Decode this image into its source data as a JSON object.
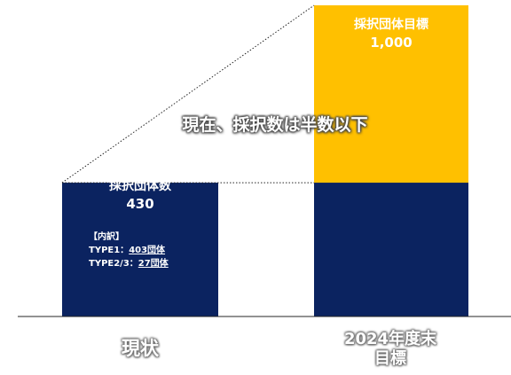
{
  "chart_data": {
    "type": "bar",
    "categories": [
      "現状",
      "2024年度末\n目標"
    ],
    "values": [
      430,
      1000
    ],
    "series_labels": [
      "採択団体数",
      "採択団体目標"
    ],
    "value_labels": [
      "430",
      "1,000"
    ],
    "breakdown": {
      "header": "【内訳】",
      "rows": [
        {
          "label": "TYPE1：",
          "value": "403団体"
        },
        {
          "label": "TYPE2/3：",
          "value": "27団体"
        }
      ]
    },
    "annotation": "現在、採択数は半数以下",
    "ylim": [
      0,
      1000
    ]
  },
  "colors": {
    "navy": "#0b2360",
    "gold": "#ffc000",
    "axis": "#262626",
    "dotted": "#262626"
  }
}
